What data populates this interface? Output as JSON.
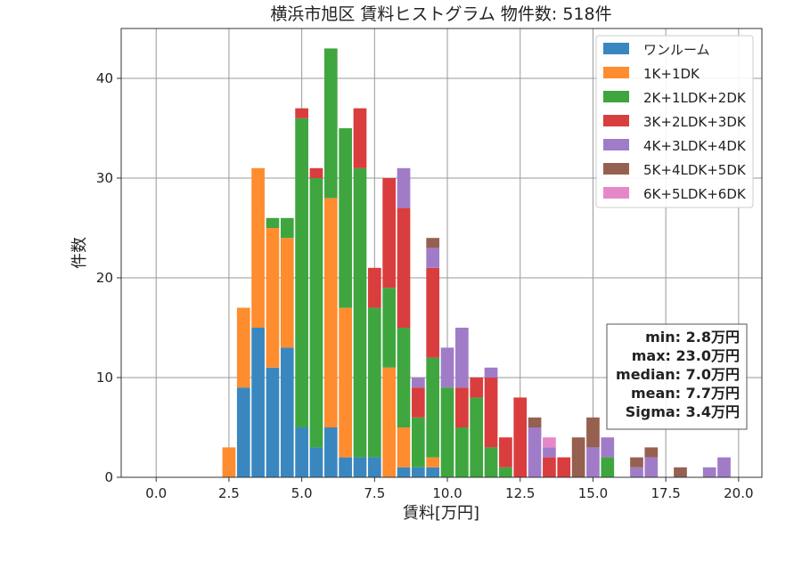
{
  "chart_data": {
    "type": "bar",
    "stacked": true,
    "title": "横浜市旭区 賃料ヒストグラム  物件数: 518件",
    "xlabel": "賃料[万円]",
    "ylabel": "件数",
    "xlim": [
      -1.2,
      20.8
    ],
    "ylim": [
      0,
      45
    ],
    "bin_width": 0.5,
    "x_ticks": [
      "0.0",
      "2.5",
      "5.0",
      "7.5",
      "10.0",
      "12.5",
      "15.0",
      "17.5",
      "20.0"
    ],
    "x_tick_values": [
      0,
      2.5,
      5,
      7.5,
      10,
      12.5,
      15,
      17.5,
      20
    ],
    "y_ticks": [
      "0",
      "10",
      "20",
      "30",
      "40"
    ],
    "y_tick_values": [
      0,
      10,
      20,
      30,
      40
    ],
    "grid": true,
    "legend_position": "top-right",
    "bins": [
      2.5,
      3.0,
      3.5,
      4.0,
      4.5,
      5.0,
      5.5,
      6.0,
      6.5,
      7.0,
      7.5,
      8.0,
      8.5,
      9.0,
      9.5,
      10.0,
      10.5,
      11.0,
      11.5,
      12.0,
      12.5,
      13.0,
      13.5,
      14.0,
      14.5,
      15.0,
      15.5,
      16.0,
      16.5,
      17.0,
      17.5,
      18.0,
      18.5,
      19.0,
      19.5,
      20.0
    ],
    "series": [
      {
        "name": "ワンルーム",
        "color": "#3a87c0",
        "values": [
          0,
          9,
          15,
          11,
          13,
          5,
          3,
          5,
          2,
          2,
          2,
          0,
          1,
          1,
          1,
          0,
          0,
          0,
          0,
          0,
          0,
          0,
          0,
          0,
          0,
          0,
          0,
          0,
          0,
          0,
          0,
          0,
          0,
          0,
          0,
          0
        ]
      },
      {
        "name": "1K+1DK",
        "color": "#ff8c2e",
        "values": [
          3,
          8,
          16,
          14,
          11,
          0,
          0,
          23,
          15,
          0,
          0,
          11,
          4,
          0,
          1,
          0,
          0,
          0,
          0,
          0,
          0,
          0,
          0,
          0,
          0,
          0,
          0,
          0,
          0,
          0,
          0,
          0,
          0,
          0,
          0,
          0
        ]
      },
      {
        "name": "2K+1LDK+2DK",
        "color": "#3fa63f",
        "values": [
          0,
          0,
          0,
          1,
          2,
          31,
          27,
          15,
          18,
          29,
          15,
          8,
          10,
          5,
          10,
          9,
          5,
          8,
          3,
          1,
          0,
          0,
          0,
          0,
          0,
          0,
          2,
          0,
          0,
          0,
          0,
          0,
          0,
          0,
          0,
          0
        ]
      },
      {
        "name": "3K+2LDK+3DK",
        "color": "#d93d3d",
        "values": [
          0,
          0,
          0,
          0,
          0,
          1,
          1,
          0,
          0,
          6,
          4,
          11,
          12,
          3,
          9,
          0,
          4,
          2,
          7,
          3,
          8,
          0,
          2,
          2,
          0,
          0,
          0,
          0,
          0,
          0,
          0,
          0,
          0,
          0,
          0,
          0
        ]
      },
      {
        "name": "4K+3LDK+4DK",
        "color": "#a07cc8",
        "values": [
          0,
          0,
          0,
          0,
          0,
          0,
          0,
          0,
          0,
          0,
          0,
          0,
          4,
          1,
          2,
          4,
          6,
          0,
          1,
          0,
          0,
          5,
          1,
          0,
          0,
          3,
          2,
          0,
          1,
          2,
          0,
          0,
          0,
          1,
          2,
          0
        ]
      },
      {
        "name": "5K+4LDK+5DK",
        "color": "#966050",
        "values": [
          0,
          0,
          0,
          0,
          0,
          0,
          0,
          0,
          0,
          0,
          0,
          0,
          0,
          0,
          1,
          0,
          0,
          0,
          0,
          0,
          0,
          1,
          0,
          0,
          4,
          3,
          0,
          0,
          1,
          1,
          0,
          1,
          0,
          0,
          0,
          0
        ]
      },
      {
        "name": "6K+5LDK+6DK",
        "color": "#e688c8",
        "values": [
          0,
          0,
          0,
          0,
          0,
          0,
          0,
          0,
          0,
          0,
          0,
          0,
          0,
          0,
          0,
          0,
          0,
          0,
          0,
          0,
          0,
          0,
          1,
          0,
          0,
          0,
          0,
          0,
          0,
          0,
          0,
          0,
          0,
          0,
          0,
          0
        ]
      }
    ],
    "stats": [
      "min: 2.8万円",
      "max: 23.0万円",
      "median: 7.0万円",
      "mean: 7.7万円",
      "Sigma: 3.4万円"
    ]
  }
}
